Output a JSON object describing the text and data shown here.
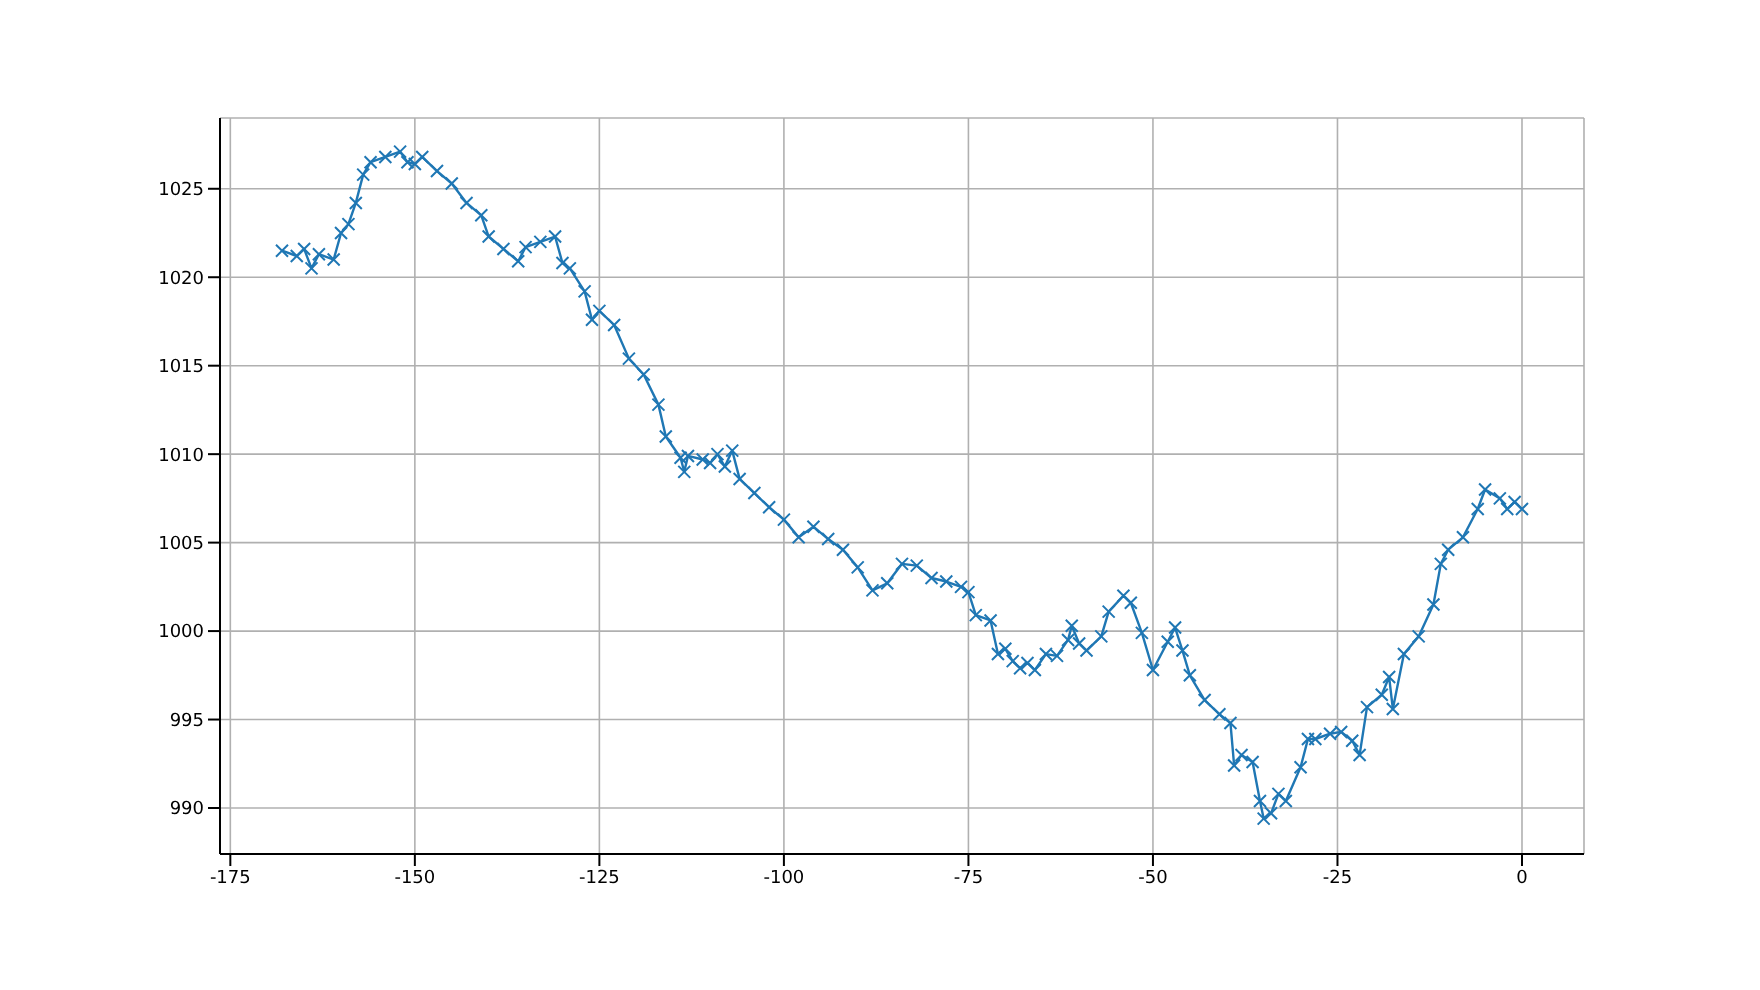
{
  "chart_data": {
    "type": "line",
    "x": [
      -168,
      -166,
      -165,
      -164,
      -163,
      -161,
      -160,
      -159,
      -158,
      -157,
      -156,
      -154,
      -152,
      -151,
      -150,
      -149,
      -147,
      -145,
      -143,
      -141,
      -140,
      -138,
      -136,
      -135,
      -133,
      -131,
      -130,
      -129,
      -127,
      -126,
      -125,
      -123,
      -121,
      -119,
      -117,
      -116,
      -114,
      -113.5,
      -113,
      -111,
      -110,
      -109,
      -108,
      -107,
      -106,
      -104,
      -102,
      -100,
      -98,
      -96,
      -94,
      -92,
      -90,
      -88,
      -86,
      -84,
      -82,
      -80,
      -78,
      -76,
      -75,
      -74,
      -72,
      -71,
      -70,
      -69,
      -68,
      -67,
      -66,
      -64.5,
      -63,
      -61.5,
      -61,
      -60,
      -59,
      -57,
      -56,
      -54,
      -53,
      -51.5,
      -50,
      -48,
      -47,
      -46,
      -45,
      -43,
      -41,
      -39.5,
      -39,
      -38,
      -36.5,
      -35.5,
      -35,
      -34,
      -33,
      -32,
      -30,
      -29,
      -28,
      -26,
      -24.5,
      -23,
      -22,
      -21,
      -19,
      -18,
      -17.5,
      -16,
      -14,
      -12,
      -11,
      -10,
      -8,
      -6,
      -5,
      -3,
      -2,
      -1,
      0
    ],
    "series": [
      {
        "color": "#1f77b4",
        "values": [
          1021.5,
          1021.2,
          1021.6,
          1020.5,
          1021.3,
          1021.0,
          1022.5,
          1023.0,
          1024.2,
          1025.8,
          1026.5,
          1026.8,
          1027.1,
          1026.5,
          1026.4,
          1026.8,
          1026.0,
          1025.3,
          1024.2,
          1023.5,
          1022.3,
          1021.6,
          1020.9,
          1021.7,
          1022.0,
          1022.3,
          1020.8,
          1020.5,
          1019.2,
          1017.6,
          1018.1,
          1017.3,
          1015.4,
          1014.5,
          1012.8,
          1011.0,
          1009.8,
          1009.0,
          1009.9,
          1009.7,
          1009.5,
          1010.0,
          1009.3,
          1010.2,
          1008.6,
          1007.8,
          1007.0,
          1006.3,
          1005.3,
          1005.9,
          1005.2,
          1004.6,
          1003.6,
          1002.3,
          1002.7,
          1003.8,
          1003.7,
          1003.0,
          1002.8,
          1002.5,
          1002.2,
          1000.9,
          1000.6,
          998.7,
          999.0,
          998.3,
          997.9,
          998.2,
          997.8,
          998.7,
          998.6,
          999.5,
          1000.3,
          999.3,
          998.9,
          999.7,
          1001.1,
          1002.0,
          1001.6,
          999.9,
          997.8,
          999.4,
          1000.2,
          998.9,
          997.5,
          996.1,
          995.3,
          994.8,
          992.4,
          993.0,
          992.6,
          990.4,
          989.4,
          989.7,
          990.8,
          990.4,
          992.3,
          993.9,
          993.9,
          994.2,
          994.3,
          993.8,
          993.0,
          995.7,
          996.4,
          997.4,
          995.6,
          998.7,
          999.7,
          1001.5,
          1003.8,
          1004.6,
          1005.3,
          1006.9,
          1008.0,
          1007.5,
          1006.9,
          1007.3,
          1006.9
        ]
      }
    ],
    "xlim": [
      -176.4,
      8.4
    ],
    "ylim": [
      987.4,
      1029
    ],
    "xticks": [
      -175,
      -150,
      -125,
      -100,
      -75,
      -50,
      -25,
      0
    ],
    "yticks": [
      990,
      995,
      1000,
      1005,
      1010,
      1015,
      1020,
      1025
    ],
    "grid": true,
    "marker": "cross",
    "line_style": "solid"
  }
}
